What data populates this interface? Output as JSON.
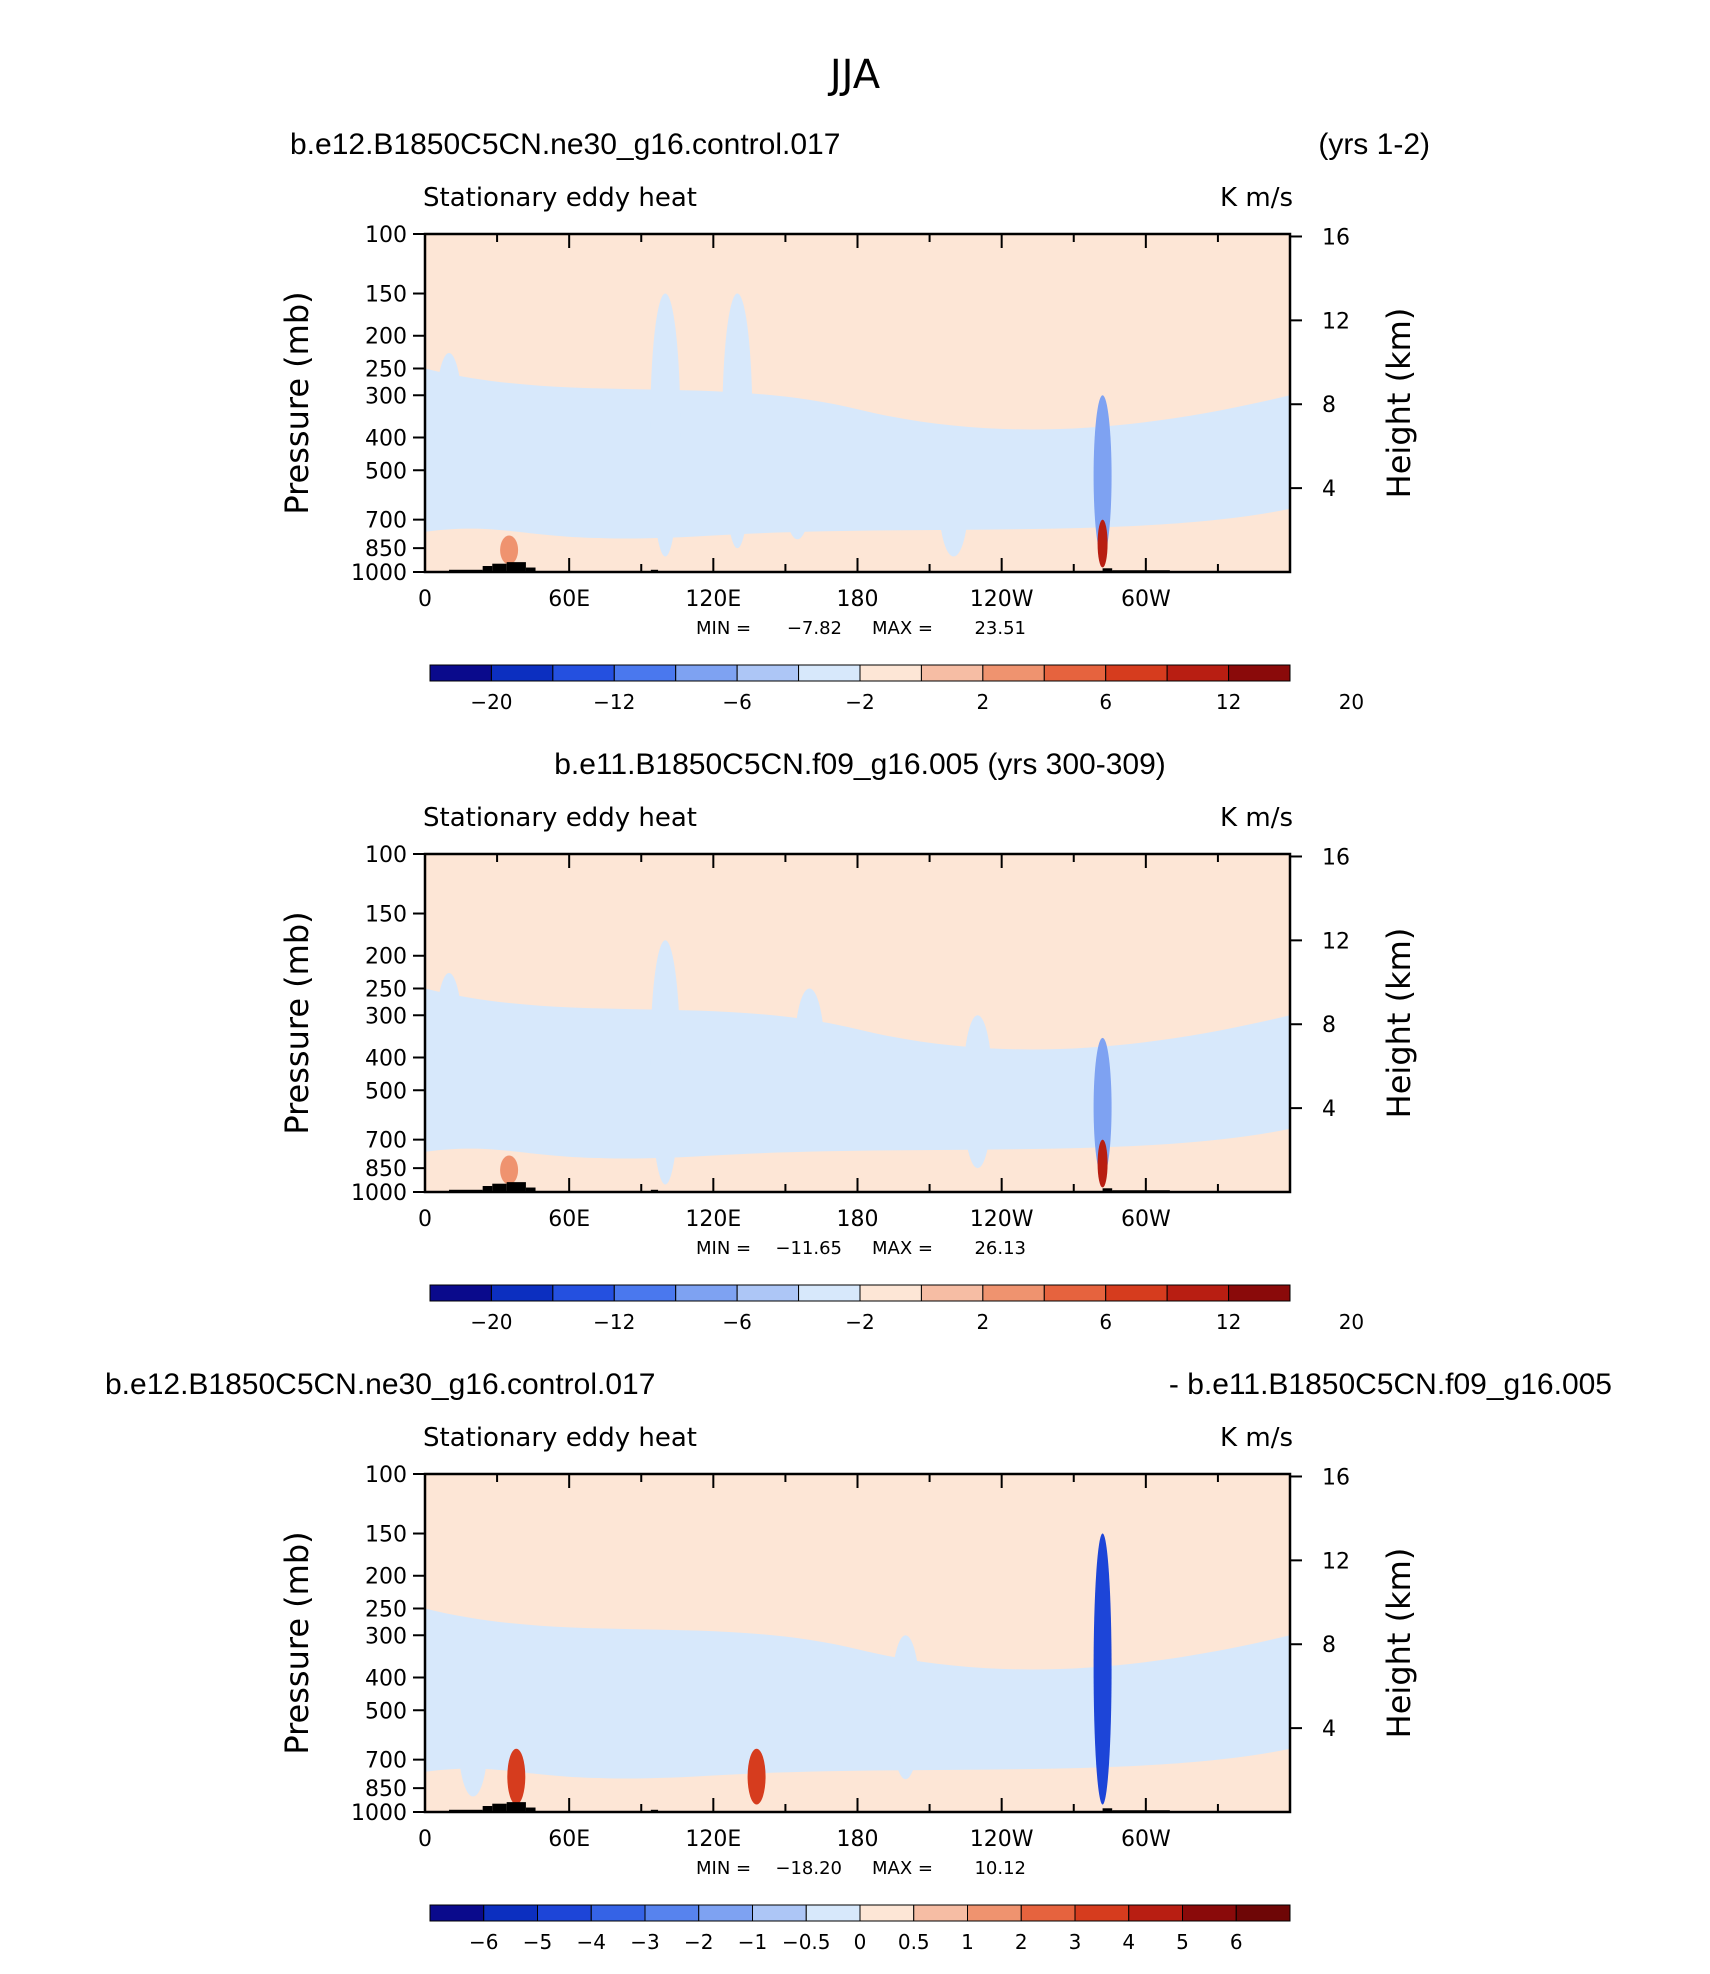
{
  "figure_title": "JJA",
  "panels": [
    {
      "run_title": "b.e12.B1850C5CN.ne30_g16.control.017",
      "run_title_right": "(yrs 1-2)",
      "chart_data": {
        "type": "heatmap",
        "variable": "Stationary eddy heat",
        "units": "K m/s",
        "ylabel": "Pressure (mb)",
        "ylabel_right": "Height (km)",
        "x_ticks": [
          "0",
          "60E",
          "120E",
          "180",
          "120W",
          "60W"
        ],
        "y_ticks": [
          "100",
          "150",
          "200",
          "250",
          "300",
          "400",
          "500",
          "700",
          "850",
          "1000"
        ],
        "y_ticks_right": [
          "16",
          "12",
          "8",
          "4"
        ],
        "min_label": "MIN =",
        "min": "−7.82",
        "max_label": "MAX =",
        "max": "23.51",
        "colorbar_labels": [
          "−20",
          "−12",
          "−6",
          "−2",
          "2",
          "6",
          "12",
          "20"
        ],
        "features": [
          {
            "lon": 10,
            "p_top": 225,
            "p_bot": 700,
            "sign": -1
          },
          {
            "lon": 35,
            "p_top": 780,
            "p_bot": 950,
            "sign": 1,
            "value": 6
          },
          {
            "lon": 100,
            "p_top": 150,
            "p_bot": 900,
            "sign": -1
          },
          {
            "lon": 130,
            "p_top": 150,
            "p_bot": 850,
            "sign": -1
          },
          {
            "lon": 155,
            "p_top": 350,
            "p_bot": 800,
            "sign": -1
          },
          {
            "lon": 220,
            "p_top": 400,
            "p_bot": 900,
            "sign": -1
          },
          {
            "lon": 282,
            "p_top": 300,
            "p_bot": 900,
            "sign": -1,
            "value": -6
          },
          {
            "lon": 282,
            "p_top": 700,
            "p_bot": 970,
            "sign": 1,
            "value": 20
          }
        ]
      }
    },
    {
      "run_title": "b.e11.B1850C5CN.f09_g16.005 (yrs 300-309)",
      "chart_data": {
        "type": "heatmap",
        "variable": "Stationary eddy heat",
        "units": "K m/s",
        "ylabel": "Pressure (mb)",
        "ylabel_right": "Height (km)",
        "x_ticks": [
          "0",
          "60E",
          "120E",
          "180",
          "120W",
          "60W"
        ],
        "y_ticks": [
          "100",
          "150",
          "200",
          "250",
          "300",
          "400",
          "500",
          "700",
          "850",
          "1000"
        ],
        "y_ticks_right": [
          "16",
          "12",
          "8",
          "4"
        ],
        "min_label": "MIN =",
        "min": "−11.65",
        "max_label": "MAX =",
        "max": "26.13",
        "colorbar_labels": [
          "−20",
          "−12",
          "−6",
          "−2",
          "2",
          "6",
          "12",
          "20"
        ],
        "features": [
          {
            "lon": 10,
            "p_top": 225,
            "p_bot": 700,
            "sign": -1
          },
          {
            "lon": 35,
            "p_top": 780,
            "p_bot": 950,
            "sign": 1,
            "value": 6
          },
          {
            "lon": 100,
            "p_top": 180,
            "p_bot": 950,
            "sign": -1
          },
          {
            "lon": 160,
            "p_top": 250,
            "p_bot": 600,
            "sign": -1
          },
          {
            "lon": 230,
            "p_top": 300,
            "p_bot": 850,
            "sign": -1
          },
          {
            "lon": 282,
            "p_top": 350,
            "p_bot": 900,
            "sign": -1,
            "value": -6
          },
          {
            "lon": 282,
            "p_top": 700,
            "p_bot": 970,
            "sign": 1,
            "value": 20
          }
        ]
      }
    },
    {
      "run_title": "b.e12.B1850C5CN.ne30_g16.control.017",
      "run_title_right": "- b.e11.B1850C5CN.f09_g16.005",
      "chart_data": {
        "type": "heatmap",
        "variable": "Stationary eddy heat",
        "units": "K m/s",
        "ylabel": "Pressure (mb)",
        "ylabel_right": "Height (km)",
        "x_ticks": [
          "0",
          "60E",
          "120E",
          "180",
          "120W",
          "60W"
        ],
        "y_ticks": [
          "100",
          "150",
          "200",
          "250",
          "300",
          "400",
          "500",
          "700",
          "850",
          "1000"
        ],
        "y_ticks_right": [
          "16",
          "12",
          "8",
          "4"
        ],
        "min_label": "MIN =",
        "min": "−18.20",
        "max_label": "MAX =",
        "max": "10.12",
        "colorbar_labels": [
          "−6",
          "−5",
          "−4",
          "−3",
          "−2",
          "−1",
          "−0.5",
          "0",
          "0.5",
          "1",
          "2",
          "3",
          "4",
          "5",
          "6"
        ],
        "features": [
          {
            "lon": 20,
            "p_top": 400,
            "p_bot": 900,
            "sign": -1
          },
          {
            "lon": 38,
            "p_top": 650,
            "p_bot": 950,
            "sign": 1,
            "value": 3
          },
          {
            "lon": 138,
            "p_top": 650,
            "p_bot": 950,
            "sign": 1,
            "value": 3
          },
          {
            "lon": 200,
            "p_top": 300,
            "p_bot": 800,
            "sign": -1
          },
          {
            "lon": 282,
            "p_top": 150,
            "p_bot": 950,
            "sign": -1,
            "value": -4
          }
        ]
      }
    }
  ]
}
